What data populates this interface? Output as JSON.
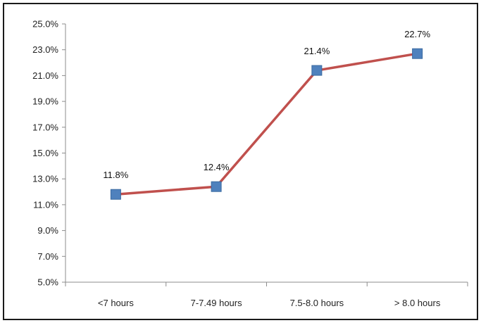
{
  "chart_data": {
    "type": "line",
    "categories": [
      "<7 hours",
      "7-7.49 hours",
      "7.5-8.0 hours",
      "> 8.0 hours"
    ],
    "series": [
      {
        "values": [
          11.8,
          12.4,
          21.4,
          22.7
        ],
        "color": "#c0504d",
        "marker_color": "#4f81bd"
      }
    ],
    "data_labels": [
      "11.8%",
      "12.4%",
      "21.4%",
      "22.7%"
    ],
    "y_ticks": [
      "5.0%",
      "7.0%",
      "9.0%",
      "11.0%",
      "13.0%",
      "15.0%",
      "17.0%",
      "19.0%",
      "21.0%",
      "23.0%",
      "25.0%"
    ],
    "ylim": [
      5.0,
      25.0
    ],
    "ystep": 2.0,
    "grid": false,
    "legend": "none",
    "title": "",
    "xlabel": "",
    "ylabel": ""
  }
}
